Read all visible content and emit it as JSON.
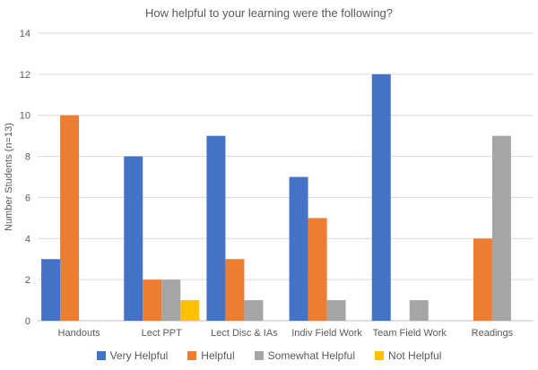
{
  "chart_data": {
    "type": "bar",
    "title": "How helpful to your learning were the following?",
    "xlabel": "",
    "ylabel": "Number Students (n=13)",
    "categories": [
      "Handouts",
      "Lect PPT",
      "Lect Disc & IAs",
      "Indiv Field Work",
      "Team Field Work",
      "Readings"
    ],
    "series": [
      {
        "name": "Very Helpful",
        "color": "#4472C4",
        "values": [
          3,
          8,
          9,
          7,
          12,
          0
        ]
      },
      {
        "name": "Helpful",
        "color": "#ED7D31",
        "values": [
          10,
          2,
          3,
          5,
          0,
          4
        ]
      },
      {
        "name": "Somewhat Helpful",
        "color": "#A5A5A5",
        "values": [
          0,
          2,
          1,
          1,
          1,
          9
        ]
      },
      {
        "name": "Not Helpful",
        "color": "#FFC000",
        "values": [
          0,
          1,
          0,
          0,
          0,
          0
        ]
      }
    ],
    "ylim": [
      0,
      14
    ],
    "yticks": [
      0,
      2,
      4,
      6,
      8,
      10,
      12,
      14
    ],
    "grid": "on",
    "legend_position": "bottom",
    "colors": {
      "gridline": "#d9d9d9",
      "axis_line": "#bfbfbf",
      "text": "#595959"
    }
  }
}
